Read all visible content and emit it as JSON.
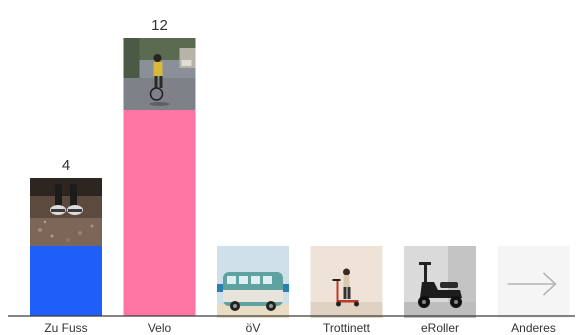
{
  "chart_data": {
    "type": "bar",
    "title": "",
    "xlabel": "",
    "ylabel": "",
    "ylim": [
      0,
      12
    ],
    "grid": false,
    "legend": "none",
    "categories": [
      "Zu Fuss",
      "Velo",
      "öV",
      "Trottinett",
      "eRoller",
      "Anderes"
    ],
    "values": [
      4,
      12,
      0,
      0,
      0,
      0
    ],
    "data_labels": [
      "4",
      "12",
      "",
      "",
      "",
      ""
    ],
    "bar_colors": [
      "#1f5ff7",
      "#ff76a4",
      "#cccccc",
      "#cccccc",
      "#cccccc",
      "#cccccc"
    ],
    "icons": [
      "walking-feet-photo-icon",
      "cyclist-photo-icon",
      "vw-bus-photo-icon",
      "kick-scooter-photo-icon",
      "motor-scooter-photo-icon",
      "arrow-right-icon"
    ],
    "baseline_color": "#3a3a3a"
  }
}
